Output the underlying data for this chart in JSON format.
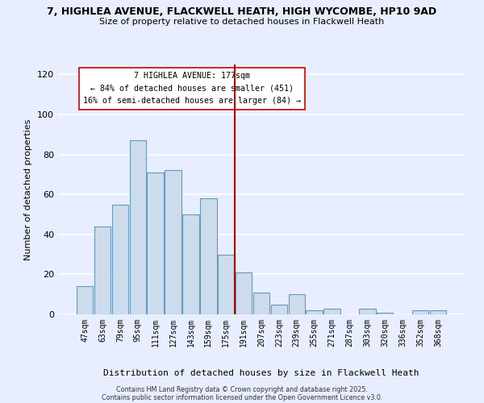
{
  "title_line1": "7, HIGHLEA AVENUE, FLACKWELL HEATH, HIGH WYCOMBE, HP10 9AD",
  "title_line2": "Size of property relative to detached houses in Flackwell Heath",
  "xlabel": "Distribution of detached houses by size in Flackwell Heath",
  "ylabel": "Number of detached properties",
  "bar_labels": [
    "47sqm",
    "63sqm",
    "79sqm",
    "95sqm",
    "111sqm",
    "127sqm",
    "143sqm",
    "159sqm",
    "175sqm",
    "191sqm",
    "207sqm",
    "223sqm",
    "239sqm",
    "255sqm",
    "271sqm",
    "287sqm",
    "303sqm",
    "320sqm",
    "336sqm",
    "352sqm",
    "368sqm"
  ],
  "bar_values": [
    14,
    44,
    55,
    87,
    71,
    72,
    50,
    58,
    30,
    21,
    11,
    5,
    10,
    2,
    3,
    0,
    3,
    1,
    0,
    2,
    2
  ],
  "bar_color": "#ccdcec",
  "bar_edge_color": "#6699bb",
  "vline_color": "#990000",
  "annotation_title": "7 HIGHLEA AVENUE: 177sqm",
  "annotation_line1": "← 84% of detached houses are smaller (451)",
  "annotation_line2": "16% of semi-detached houses are larger (84) →",
  "ylim": [
    0,
    125
  ],
  "yticks": [
    0,
    20,
    40,
    60,
    80,
    100,
    120
  ],
  "background_color": "#e8eeff",
  "plot_bg_color": "#e8eeff",
  "grid_color": "#ffffff",
  "footer_line1": "Contains HM Land Registry data © Crown copyright and database right 2025.",
  "footer_line2": "Contains public sector information licensed under the Open Government Licence v3.0."
}
